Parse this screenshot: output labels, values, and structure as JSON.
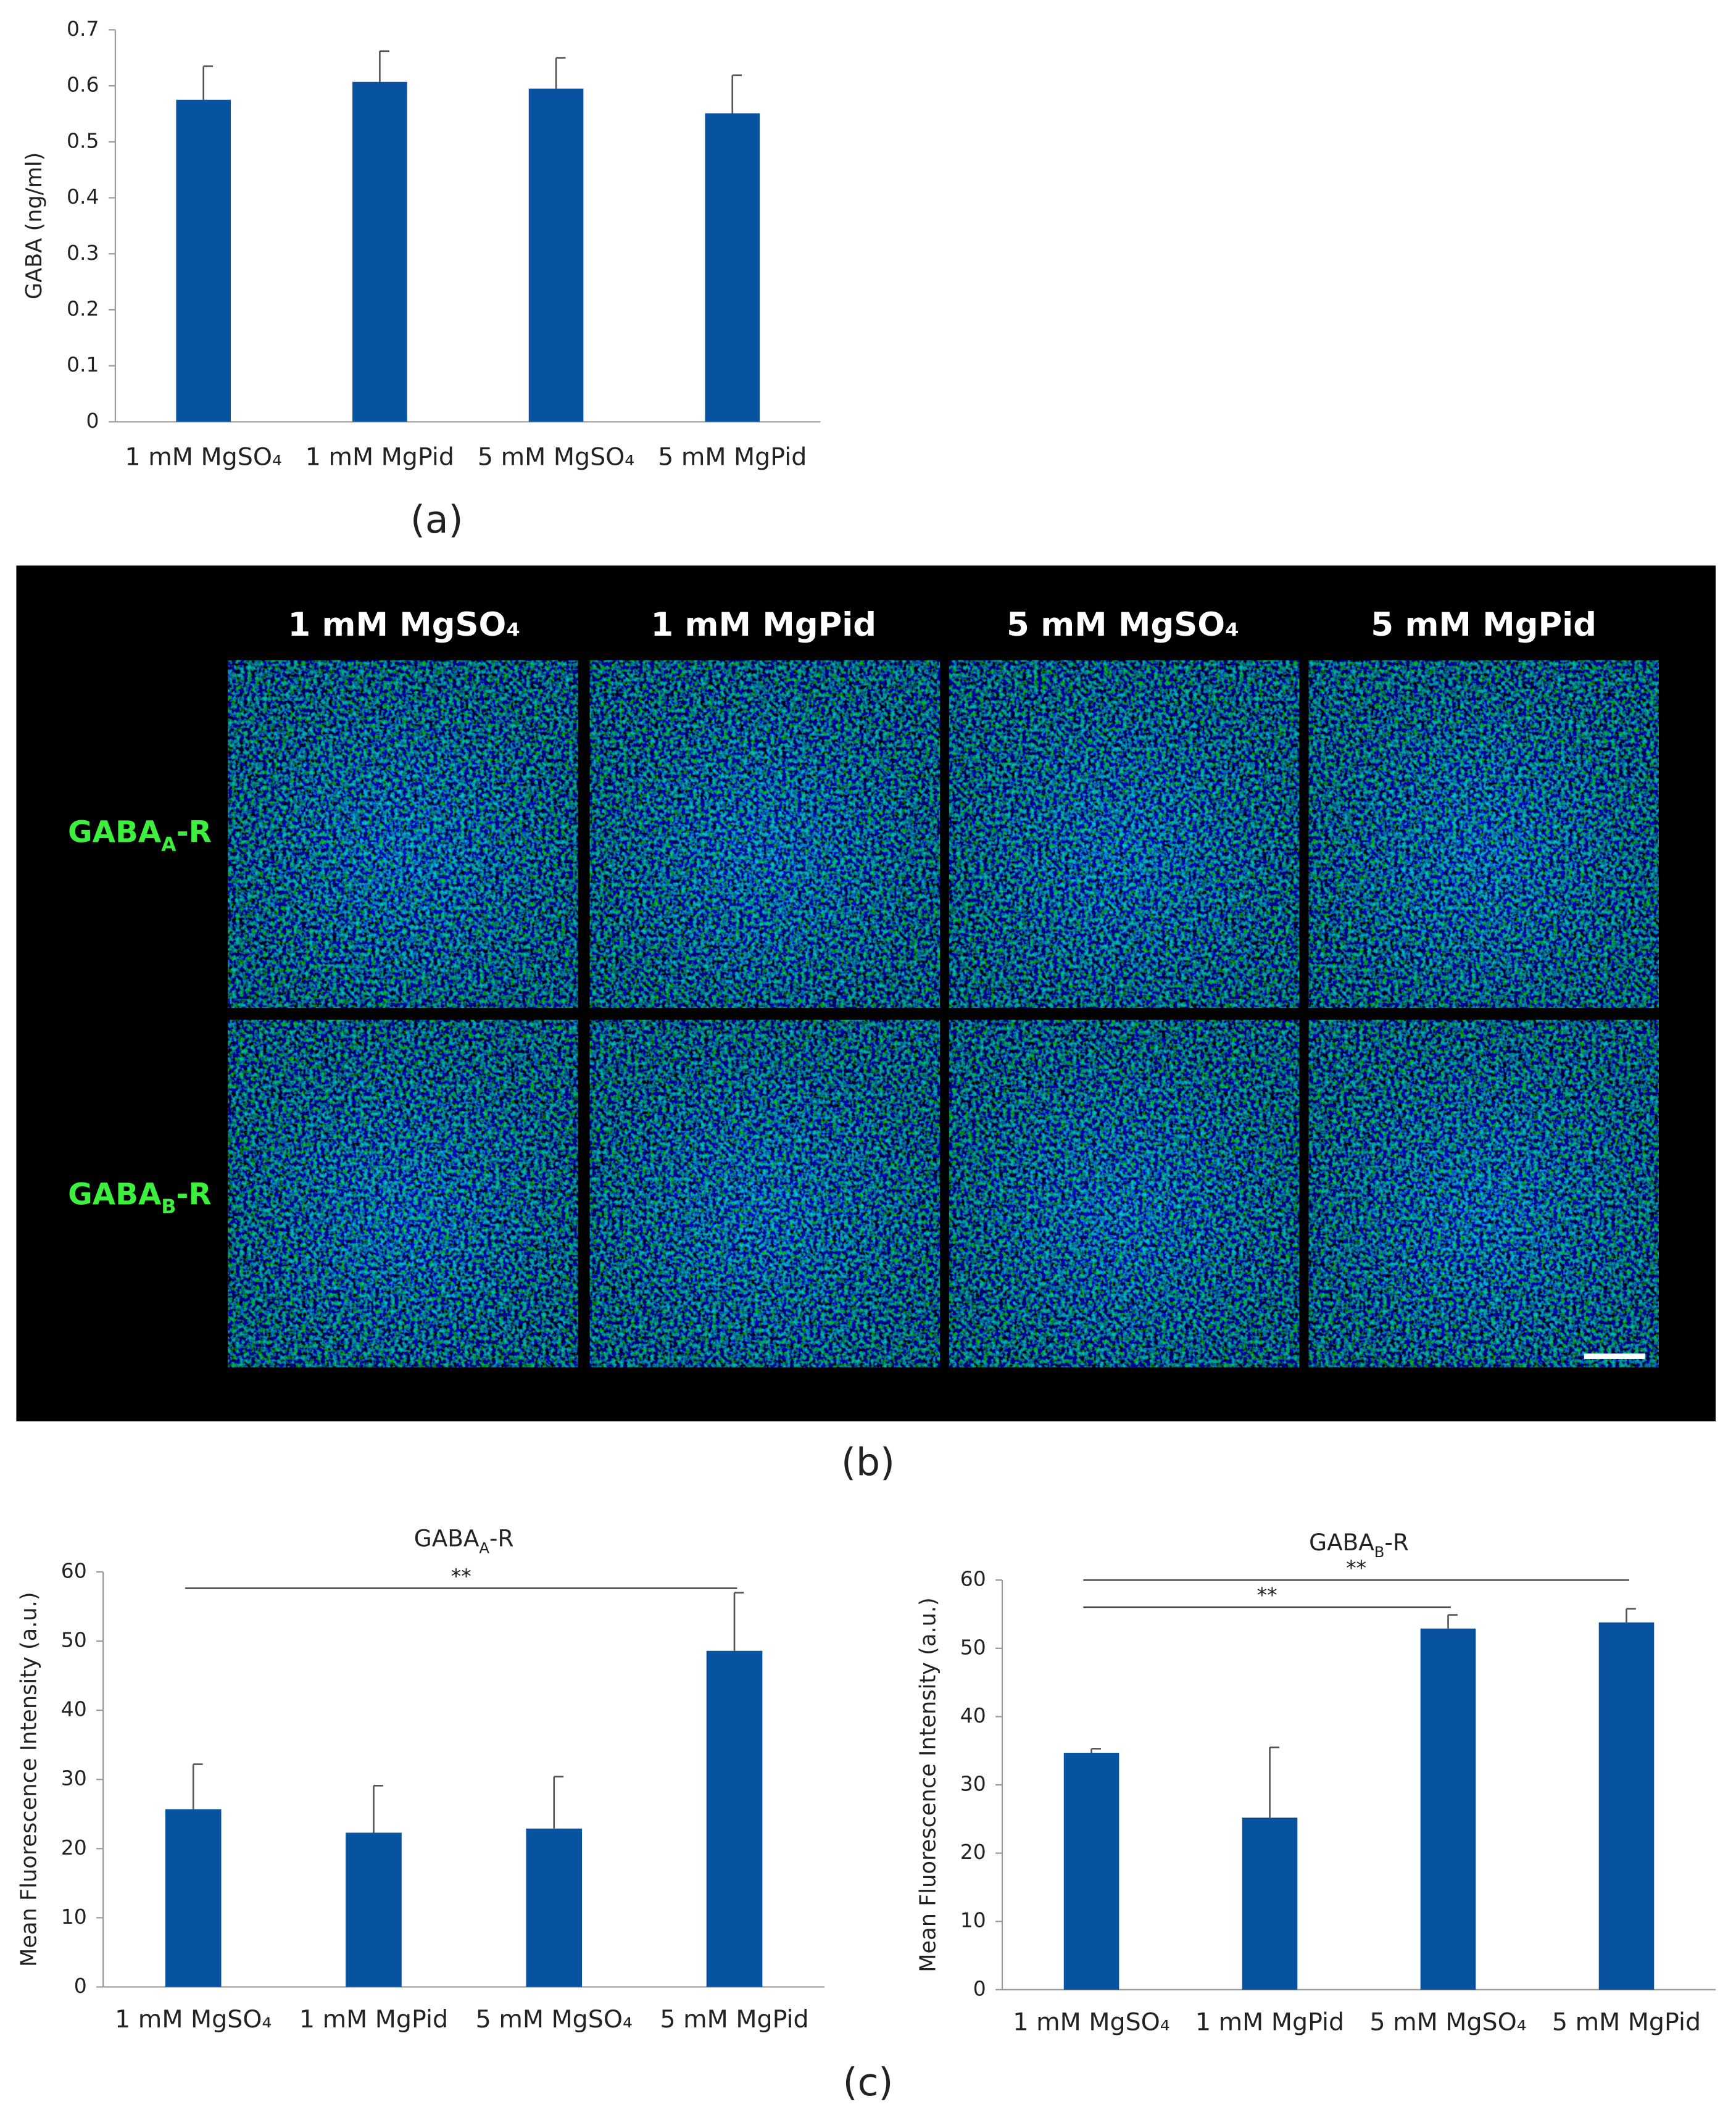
{
  "panel_labels": [
    "(a)",
    "(b)",
    "(c)"
  ],
  "image_panel": {
    "columns": [
      "1 mM MgSO₄",
      "1 mM MgPid",
      "5 mM MgSO₄",
      "5 mM MgPid"
    ],
    "rows": [
      [
        "GABA",
        "A",
        "-R"
      ],
      [
        "GABA",
        "B",
        "-R"
      ]
    ]
  },
  "chart_data": [
    {
      "type": "bar",
      "y_label": "GABA (ng/ml)",
      "categories": [
        "1 mM MgSO₄",
        "1 mM MgPid",
        "5 mM MgSO₄",
        "5 mM MgPid"
      ],
      "values": [
        0.575,
        0.607,
        0.595,
        0.551
      ],
      "errors": [
        0.06,
        0.055,
        0.055,
        0.068
      ],
      "color": "#0753a0",
      "ylim": [
        0,
        0.7
      ],
      "yticks": [
        0,
        0.1,
        0.2,
        0.3,
        0.4,
        0.5,
        0.6,
        0.7
      ]
    },
    {
      "type": "bar",
      "title": [
        "GABA",
        "A",
        "-R"
      ],
      "y_label": "Mean Fluorescence Intensity (a.u.)",
      "categories": [
        "1 mM MgSO₄",
        "1 mM MgPid",
        "5 mM MgSO₄",
        "5 mM MgPid"
      ],
      "values": [
        25.7,
        22.3,
        22.9,
        48.6
      ],
      "errors": [
        6.5,
        6.8,
        7.5,
        8.4
      ],
      "color": "#0753a0",
      "ylim": [
        0,
        60
      ],
      "yticks": [
        0,
        10,
        20,
        30,
        40,
        50,
        60
      ],
      "annotations": [
        {
          "text": "**"
        }
      ]
    },
    {
      "type": "bar",
      "title": [
        "GABA",
        "B",
        "-R"
      ],
      "y_label": "Mean Fluorescence Intensity (a.u.)",
      "categories": [
        "1 mM MgSO₄",
        "1 mM MgPid",
        "5 mM MgSO₄",
        "5 mM MgPid"
      ],
      "values": [
        34.7,
        25.2,
        52.9,
        53.8
      ],
      "errors": [
        0.6,
        10.3,
        2.0,
        2.0
      ],
      "color": "#0753a0",
      "ylim": [
        0,
        60
      ],
      "yticks": [
        0,
        10,
        20,
        30,
        40,
        50,
        60
      ],
      "annotations": [
        {
          "text": "**"
        },
        {
          "text": "**"
        }
      ]
    }
  ]
}
